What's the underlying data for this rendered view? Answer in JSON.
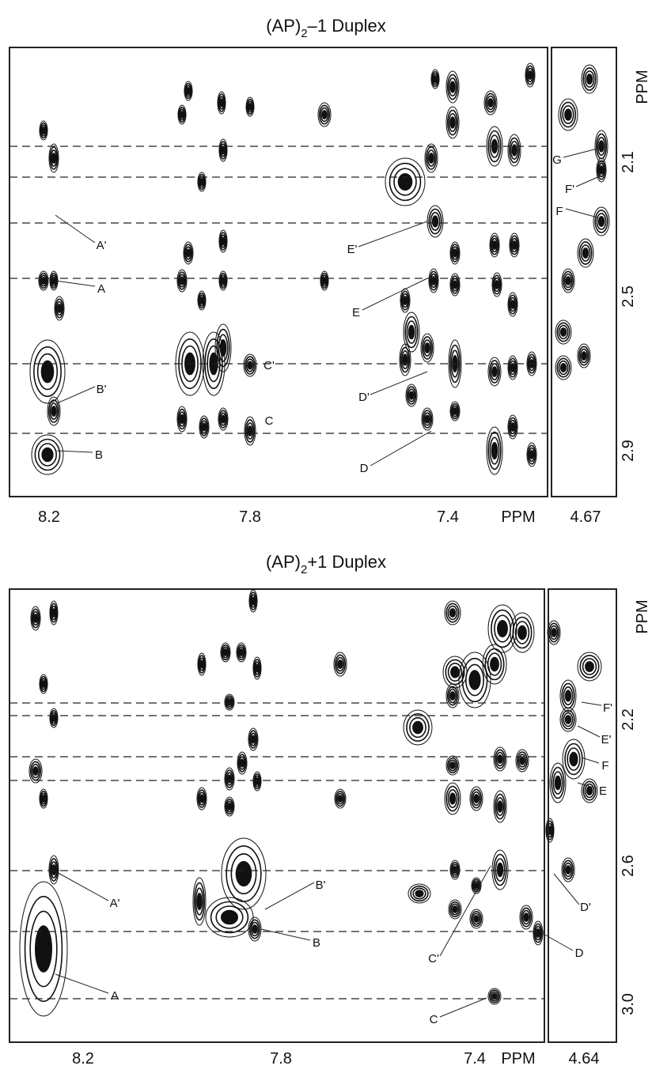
{
  "panels": [
    {
      "title": {
        "main": "(AP)",
        "sub": "2",
        "rest": "–1 Duplex"
      },
      "y_axis_label": "PPM",
      "y_tick_labels": [
        "2.1",
        "2.5",
        "2.9"
      ],
      "x_tick_labels": [
        "8.2",
        "7.8",
        "7.4"
      ],
      "x_axis_label": "PPM",
      "side_tick_label": "4.67",
      "peak_labels": [
        "A'",
        "A",
        "B'",
        "B",
        "C'",
        "C",
        "E'",
        "E",
        "D'",
        "D",
        "G",
        "F'",
        "F"
      ]
    },
    {
      "title": {
        "main": "(AP)",
        "sub": "2",
        "rest": "+1 Duplex"
      },
      "y_axis_label": "PPM",
      "y_tick_labels": [
        "2.2",
        "2.6",
        "3.0"
      ],
      "x_tick_labels": [
        "8.2",
        "7.8",
        "7.4"
      ],
      "x_axis_label": "PPM",
      "side_tick_label": "4.64",
      "peak_labels": [
        "A'",
        "A",
        "B'",
        "B",
        "C'",
        "C",
        "D'",
        "D",
        "F'",
        "E'",
        "F",
        "E"
      ]
    }
  ]
}
